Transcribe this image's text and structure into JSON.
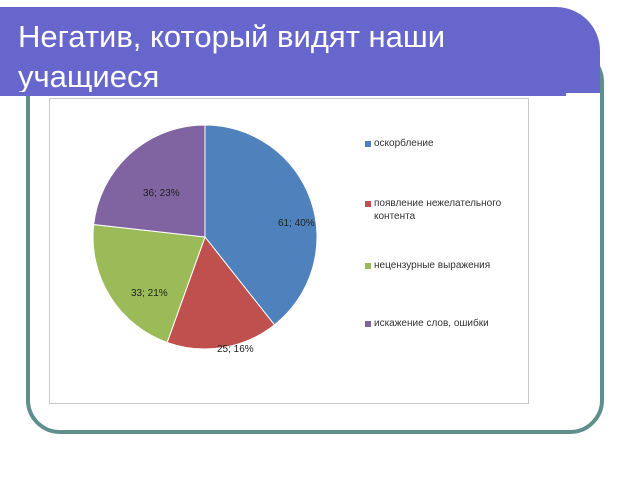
{
  "slide": {
    "title": "Негатив, который видят наши учащиеся",
    "title_bg": "#6666cc",
    "frame_color": "#5e8f8d"
  },
  "chart_data": {
    "type": "pie",
    "slices": [
      {
        "name": "оскорбление",
        "value": 61,
        "percent": 40,
        "label": "61; 40%",
        "color": "#4f81bd"
      },
      {
        "name": "появление нежелательного контента",
        "value": 25,
        "percent": 16,
        "label": "25; 16%",
        "color": "#c0504d"
      },
      {
        "name": "нецензурные выражения",
        "value": 33,
        "percent": 21,
        "label": "33; 21%",
        "color": "#9bbb59"
      },
      {
        "name": "искажение слов, ошибки",
        "value": 36,
        "percent": 23,
        "label": "36; 23%",
        "color": "#8064a2"
      }
    ],
    "legend_position": "right"
  }
}
